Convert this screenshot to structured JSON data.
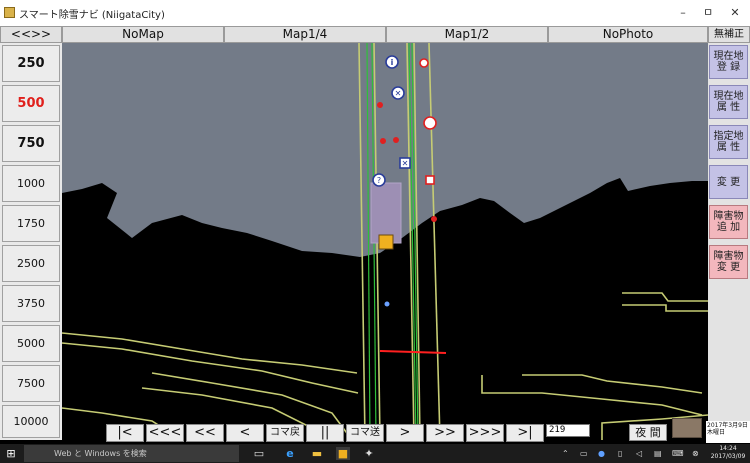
{
  "window": {
    "title": "スマート除雪ナビ (NiigataCity)",
    "minimize_glyph": "–",
    "maximize_glyph": "ㅁ",
    "close_glyph": "✕"
  },
  "tabs": {
    "toggle": "<<>>",
    "nomap": "NoMap",
    "map14": "Map1/4",
    "map12": "Map1/2",
    "nophoto": "NoPhoto",
    "no_correction": "無補正"
  },
  "scales": [
    {
      "label": "250"
    },
    {
      "label": "500",
      "active": true
    },
    {
      "label": "750"
    },
    {
      "label": "1000"
    },
    {
      "label": "1750"
    },
    {
      "label": "2500"
    },
    {
      "label": "3750"
    },
    {
      "label": "5000"
    },
    {
      "label": "7500"
    },
    {
      "label": "10000"
    }
  ],
  "side_buttons": {
    "register_location": "現在地\n登 録",
    "location_attribute": "現在地\n属 性",
    "specified_attribute": "指定地\n属 性",
    "change": "変 更",
    "add_obstacle": "障害物\n追 加",
    "change_obstacle": "障害物\n変 更"
  },
  "playback": {
    "first": "|<",
    "back_fast": "<<<",
    "back_more": "<<",
    "back": "<",
    "frame_back": "コマ戻",
    "pause": "||",
    "frame_forward": "コマ送",
    "forward": ">",
    "forward_more": ">>",
    "forward_fast": ">>>",
    "last": ">|",
    "frame_value": "219",
    "night": "夜 間"
  },
  "date_panel": {
    "date": "2017年3月9日",
    "weekday": "木曜日"
  },
  "taskbar": {
    "search_placeholder": "Web と Windows を検索",
    "time": "14:24",
    "date": "2017/03/09"
  },
  "colors": {
    "sky": "#737b88",
    "ground": "#000000",
    "road_line": "#c6cc74",
    "route_line": "#2fbf3a",
    "cut_line": "#ff2020",
    "active_scale": "#e0201c",
    "side_button": "#c4c2e6",
    "obstacle_button": "#f3b7bd"
  }
}
